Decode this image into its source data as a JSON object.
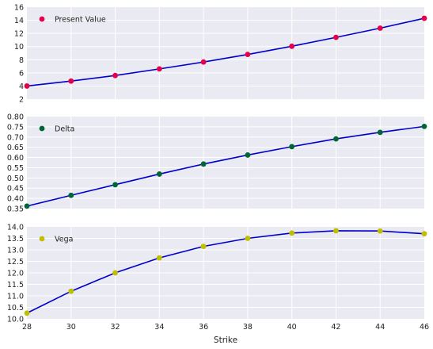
{
  "chart_data": [
    {
      "type": "line",
      "x": [
        28,
        30,
        32,
        34,
        36,
        38,
        40,
        42,
        44,
        46
      ],
      "series": [
        {
          "name": "Present Value",
          "marker_color": "#e6004c",
          "line_color": "#0000cc",
          "values": [
            4.0,
            4.75,
            5.6,
            6.6,
            7.65,
            8.8,
            10.05,
            11.4,
            12.8,
            14.3
          ]
        }
      ],
      "xlim": [
        28,
        46
      ],
      "ylim": [
        2,
        16
      ],
      "yticks": [
        2,
        4,
        6,
        8,
        10,
        12,
        14,
        16
      ],
      "ytick_labels": [
        "2",
        "4",
        "6",
        "8",
        "10",
        "12",
        "14",
        "16"
      ],
      "show_xticklabels": false,
      "xlabel": "",
      "ylabel": "",
      "legend": "top-left",
      "grid": true
    },
    {
      "type": "line",
      "x": [
        28,
        30,
        32,
        34,
        36,
        38,
        40,
        42,
        44,
        46
      ],
      "series": [
        {
          "name": "Delta",
          "marker_color": "#006633",
          "line_color": "#0000cc",
          "values": [
            0.362,
            0.415,
            0.467,
            0.519,
            0.568,
            0.612,
            0.653,
            0.691,
            0.723,
            0.752
          ]
        }
      ],
      "xlim": [
        28,
        46
      ],
      "ylim": [
        0.35,
        0.8
      ],
      "yticks": [
        0.35,
        0.4,
        0.45,
        0.5,
        0.55,
        0.6,
        0.65,
        0.7,
        0.75,
        0.8
      ],
      "ytick_labels": [
        "0.35",
        "0.40",
        "0.45",
        "0.50",
        "0.55",
        "0.60",
        "0.65",
        "0.70",
        "0.75",
        "0.80"
      ],
      "show_xticklabels": false,
      "xlabel": "",
      "ylabel": "",
      "legend": "top-left",
      "grid": true
    },
    {
      "type": "line",
      "x": [
        28,
        30,
        32,
        34,
        36,
        38,
        40,
        42,
        44,
        46
      ],
      "series": [
        {
          "name": "Vega",
          "marker_color": "#bfbf00",
          "line_color": "#0000cc",
          "values": [
            10.25,
            11.2,
            12.0,
            12.65,
            13.15,
            13.5,
            13.73,
            13.83,
            13.82,
            13.7
          ]
        }
      ],
      "xlim": [
        28,
        46
      ],
      "ylim": [
        10.0,
        14.0
      ],
      "yticks": [
        10.0,
        10.5,
        11.0,
        11.5,
        12.0,
        12.5,
        13.0,
        13.5,
        14.0
      ],
      "ytick_labels": [
        "10.0",
        "10.5",
        "11.0",
        "11.5",
        "12.0",
        "12.5",
        "13.0",
        "13.5",
        "14.0"
      ],
      "xticks": [
        28,
        30,
        32,
        34,
        36,
        38,
        40,
        42,
        44,
        46
      ],
      "xtick_labels": [
        "28",
        "30",
        "32",
        "34",
        "36",
        "38",
        "40",
        "42",
        "44",
        "46"
      ],
      "show_xticklabels": true,
      "xlabel": "Strike",
      "ylabel": "",
      "legend": "top-left",
      "grid": true
    }
  ],
  "colors": {
    "plot_background": "#eaeaf2",
    "grid": "#ffffff"
  }
}
